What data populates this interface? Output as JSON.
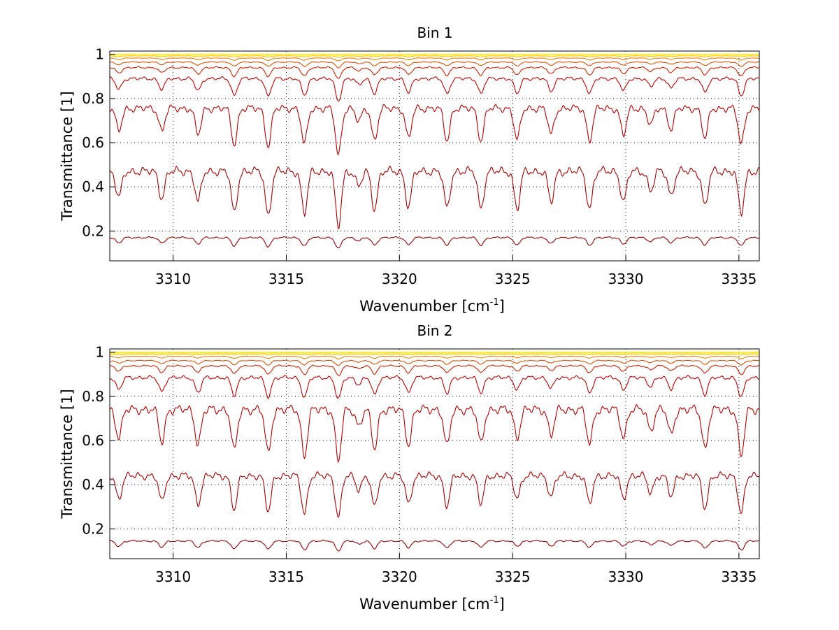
{
  "chart_data": [
    {
      "type": "line",
      "title": "Bin 1",
      "xlabel_main": "Wavenumber [cm",
      "xlabel_sup": "-1",
      "xlabel_tail": "]",
      "ylabel": "Transmittance [1]",
      "xlim": [
        3307.2,
        3335.9
      ],
      "ylim": [
        0.065,
        1.015
      ],
      "grid": true,
      "x_ticks": [
        3310,
        3315,
        3320,
        3325,
        3330,
        3335
      ],
      "y_ticks": [
        0.2,
        0.4,
        0.6,
        0.8,
        1
      ],
      "y_tick_labels": [
        "0.2",
        "0.4",
        "0.6",
        "0.8",
        "1"
      ],
      "x_tick_labels": [
        "3310",
        "3315",
        "3320",
        "3325",
        "3330",
        "3335"
      ],
      "absorption_lines": [
        {
          "x": 3307.6,
          "strength": 0.6
        },
        {
          "x": 3309.5,
          "strength": 0.6
        },
        {
          "x": 3311.1,
          "strength": 0.7
        },
        {
          "x": 3312.7,
          "strength": 0.95
        },
        {
          "x": 3314.2,
          "strength": 1.0
        },
        {
          "x": 3315.8,
          "strength": 0.95
        },
        {
          "x": 3317.3,
          "strength": 1.25
        },
        {
          "x": 3318.2,
          "strength": 0.35
        },
        {
          "x": 3318.9,
          "strength": 0.85
        },
        {
          "x": 3320.4,
          "strength": 0.8
        },
        {
          "x": 3322.1,
          "strength": 0.85
        },
        {
          "x": 3323.6,
          "strength": 0.85
        },
        {
          "x": 3325.2,
          "strength": 0.85
        },
        {
          "x": 3326.7,
          "strength": 0.7
        },
        {
          "x": 3328.4,
          "strength": 0.85
        },
        {
          "x": 3329.9,
          "strength": 0.7
        },
        {
          "x": 3331.1,
          "strength": 0.45
        },
        {
          "x": 3332.0,
          "strength": 0.55
        },
        {
          "x": 3333.5,
          "strength": 0.8
        },
        {
          "x": 3335.1,
          "strength": 0.95
        }
      ],
      "series": [
        {
          "baseline": 0.17,
          "depth_scale": 0.04,
          "color": "#990000"
        },
        {
          "baseline": 0.47,
          "depth_scale": 0.2,
          "color": "#a80000"
        },
        {
          "baseline": 0.755,
          "depth_scale": 0.17,
          "color": "#b80000"
        },
        {
          "baseline": 0.89,
          "depth_scale": 0.08,
          "color": "#c40000"
        },
        {
          "baseline": 0.94,
          "depth_scale": 0.04,
          "color": "#d02000"
        },
        {
          "baseline": 0.965,
          "depth_scale": 0.02,
          "color": "#e05000"
        },
        {
          "baseline": 0.983,
          "depth_scale": 0.01,
          "color": "#f08000"
        },
        {
          "baseline": 0.993,
          "depth_scale": 0.005,
          "color": "#ffc000"
        },
        {
          "baseline": 0.998,
          "depth_scale": 0.002,
          "color": "#ffe000"
        },
        {
          "baseline": 1.0,
          "depth_scale": 0.0,
          "color": "#ffff00"
        }
      ]
    },
    {
      "type": "line",
      "title": "Bin 2",
      "xlabel_main": "Wavenumber [cm",
      "xlabel_sup": "-1",
      "xlabel_tail": "]",
      "ylabel": "Transmittance [1]",
      "xlim": [
        3307.2,
        3335.9
      ],
      "ylim": [
        0.065,
        1.015
      ],
      "grid": true,
      "x_ticks": [
        3310,
        3315,
        3320,
        3325,
        3330,
        3335
      ],
      "y_ticks": [
        0.2,
        0.4,
        0.6,
        0.8,
        1
      ],
      "y_tick_labels": [
        "0.2",
        "0.4",
        "0.6",
        "0.8",
        "1"
      ],
      "x_tick_labels": [
        "3310",
        "3315",
        "3320",
        "3325",
        "3330",
        "3335"
      ],
      "absorption_lines": [
        {
          "x": 3307.6,
          "strength": 0.6
        },
        {
          "x": 3309.5,
          "strength": 0.7
        },
        {
          "x": 3311.1,
          "strength": 0.75
        },
        {
          "x": 3312.7,
          "strength": 0.9
        },
        {
          "x": 3314.2,
          "strength": 0.95
        },
        {
          "x": 3315.8,
          "strength": 1.0
        },
        {
          "x": 3317.3,
          "strength": 1.1
        },
        {
          "x": 3318.2,
          "strength": 0.35
        },
        {
          "x": 3318.9,
          "strength": 0.85
        },
        {
          "x": 3320.4,
          "strength": 0.75
        },
        {
          "x": 3322.1,
          "strength": 0.8
        },
        {
          "x": 3323.6,
          "strength": 0.75
        },
        {
          "x": 3325.2,
          "strength": 0.6
        },
        {
          "x": 3326.7,
          "strength": 0.55
        },
        {
          "x": 3328.4,
          "strength": 0.75
        },
        {
          "x": 3329.9,
          "strength": 0.6
        },
        {
          "x": 3331.1,
          "strength": 0.45
        },
        {
          "x": 3332.0,
          "strength": 0.55
        },
        {
          "x": 3333.5,
          "strength": 0.85
        },
        {
          "x": 3335.1,
          "strength": 1.0
        }
      ],
      "series": [
        {
          "baseline": 0.145,
          "depth_scale": 0.04,
          "color": "#990000"
        },
        {
          "baseline": 0.44,
          "depth_scale": 0.17,
          "color": "#a80000"
        },
        {
          "baseline": 0.74,
          "depth_scale": 0.21,
          "color": "#b80000"
        },
        {
          "baseline": 0.885,
          "depth_scale": 0.09,
          "color": "#c40000"
        },
        {
          "baseline": 0.938,
          "depth_scale": 0.04,
          "color": "#d02000"
        },
        {
          "baseline": 0.962,
          "depth_scale": 0.02,
          "color": "#e05000"
        },
        {
          "baseline": 0.981,
          "depth_scale": 0.01,
          "color": "#f08000"
        },
        {
          "baseline": 0.992,
          "depth_scale": 0.005,
          "color": "#ffc000"
        },
        {
          "baseline": 0.997,
          "depth_scale": 0.002,
          "color": "#ffe000"
        },
        {
          "baseline": 1.0,
          "depth_scale": 0.0,
          "color": "#ffff00"
        }
      ]
    }
  ]
}
